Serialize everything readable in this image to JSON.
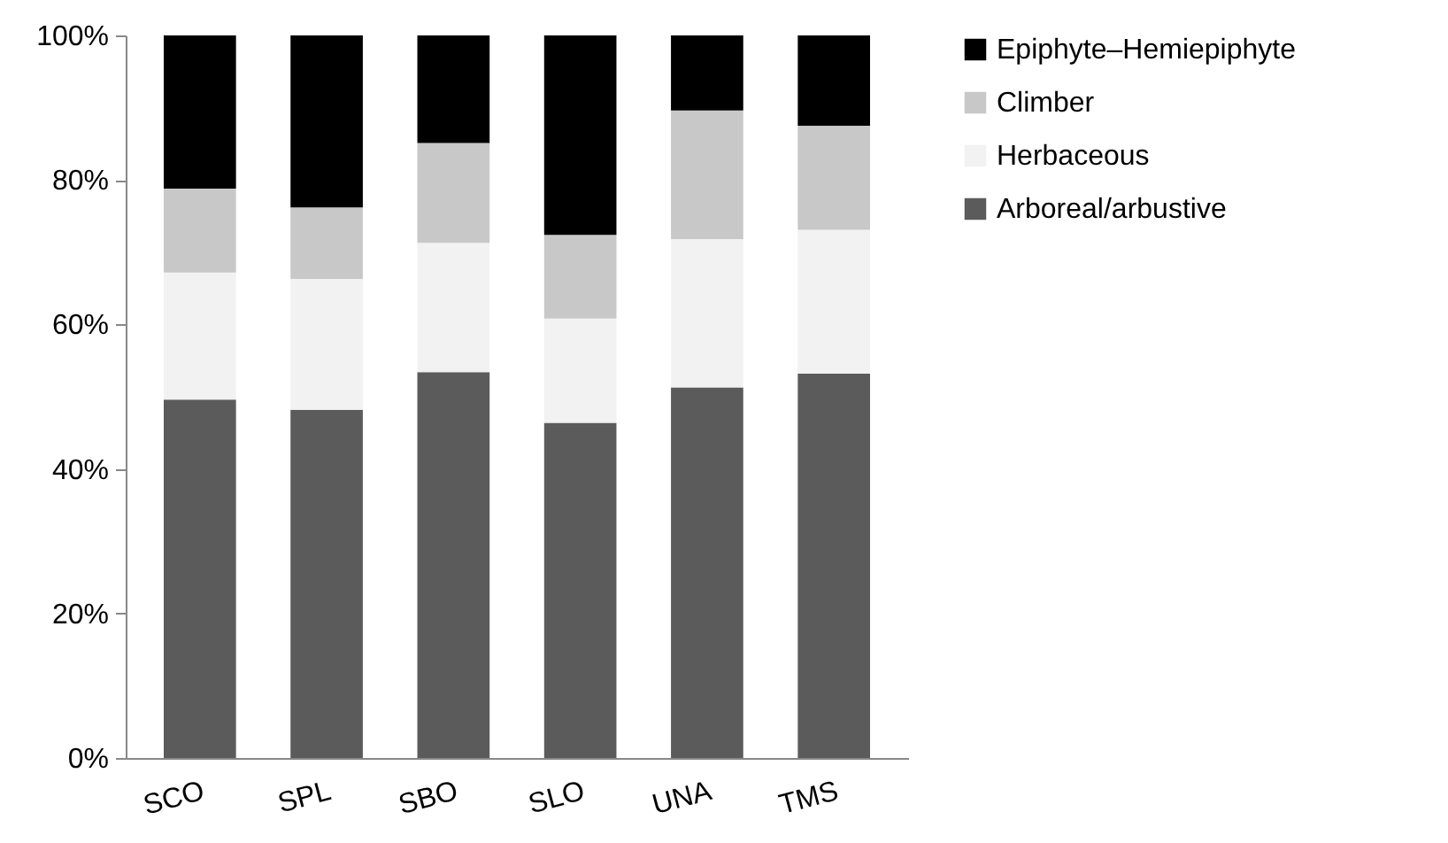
{
  "chart_data": {
    "type": "bar",
    "stacked": true,
    "categories": [
      "SCO",
      "SPL",
      "SBO",
      "SLO",
      "UNA",
      "TMS"
    ],
    "series": [
      {
        "name": "Arboreal/arbustive",
        "color": "#5b5b5b",
        "values": [
          49.6,
          48.2,
          53.4,
          46.4,
          51.3,
          53.2
        ]
      },
      {
        "name": "Herbaceous",
        "color": "#f2f2f2",
        "values": [
          17.6,
          18.1,
          17.9,
          14.4,
          20.5,
          19.9
        ]
      },
      {
        "name": "Climber",
        "color": "#c8c8c8",
        "values": [
          11.6,
          9.9,
          13.8,
          11.6,
          17.8,
          14.4
        ]
      },
      {
        "name": "Epiphyte–Hemiepiphyte",
        "color": "#000000",
        "values": [
          21.2,
          23.8,
          14.9,
          27.6,
          10.4,
          12.5
        ]
      }
    ],
    "ylim": [
      0,
      100
    ],
    "yticks": [
      {
        "value": 0,
        "label": "0%"
      },
      {
        "value": 20,
        "label": "20%"
      },
      {
        "value": 40,
        "label": "40%"
      },
      {
        "value": 60,
        "label": "60%"
      },
      {
        "value": 80,
        "label": "80%"
      },
      {
        "value": 100,
        "label": "100%"
      }
    ],
    "grid": false,
    "legend": "right"
  }
}
